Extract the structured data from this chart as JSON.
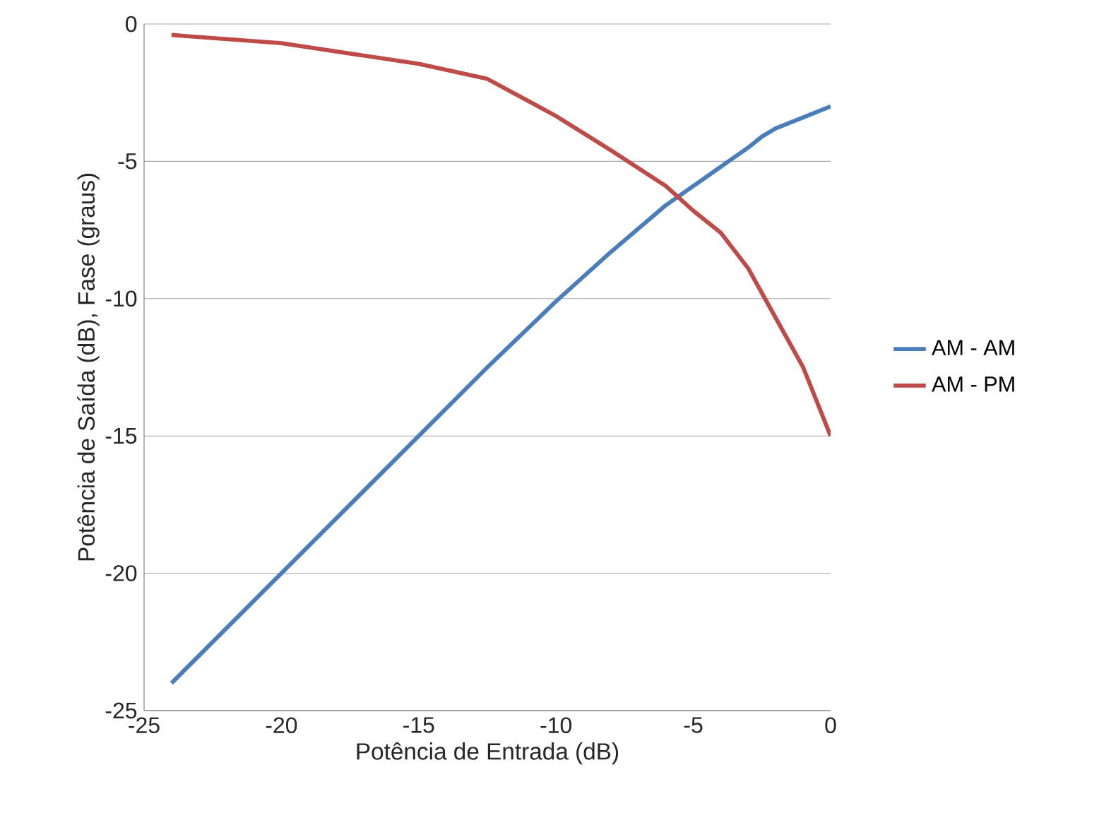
{
  "chart_data": {
    "type": "line",
    "xlabel": "Potência de Entrada (dB)",
    "ylabel": "Potência de Saída (dB), Fase (graus)",
    "xlim": [
      -25,
      0
    ],
    "xticks": [
      -25,
      -20,
      -15,
      -10,
      -5,
      0
    ],
    "ylim": [
      -25,
      0
    ],
    "yticks": [
      -25,
      -20,
      -15,
      -10,
      -5,
      0
    ],
    "grid": "y",
    "legend": "right",
    "marker": "none",
    "line_style": "solid",
    "x": [
      -24,
      -20,
      -15,
      -12.5,
      -10,
      -8,
      -6,
      -5,
      -4,
      -3,
      -2.5,
      -2,
      -1,
      0
    ],
    "series": [
      {
        "name": "AM - AM",
        "color": "#4a7ebb",
        "values": [
          -24,
          -20,
          -15,
          -12.5,
          -10.1,
          -8.3,
          -6.6,
          -5.9,
          -5.2,
          -4.5,
          -4.1,
          -3.8,
          -3.4,
          -3
        ]
      },
      {
        "name": "AM - PM",
        "color": "#be4b48",
        "values": [
          -0.4,
          -0.7,
          -1.45,
          -2,
          -3.35,
          -4.6,
          -5.9,
          -6.8,
          -7.6,
          -8.9,
          -9.8,
          -10.7,
          -12.5,
          -15
        ]
      }
    ]
  }
}
